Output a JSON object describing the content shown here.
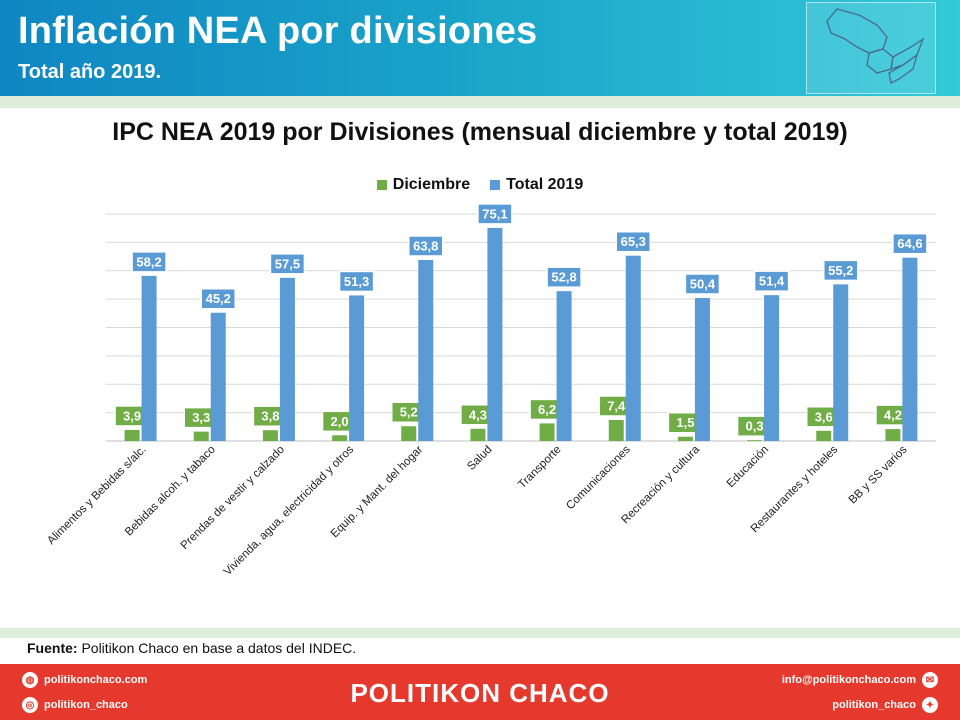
{
  "header": {
    "title": "Inflación NEA por divisiones",
    "subtitle": "Total año 2019."
  },
  "chart_data": {
    "type": "bar",
    "title": "IPC NEA 2019 por Divisiones (mensual diciembre y total 2019)",
    "categories": [
      "Alimentos y Bebidas s/alc.",
      "Bebidas alcoh. y tabaco",
      "Prendas de vestir y calzado",
      "Vivienda, agua, electricidad y otros",
      "Equip. y Mant. del hogar",
      "Salud",
      "Transporte",
      "Comunicaciones",
      "Recreación y cultura",
      "Educación",
      "Restaurantes y hoteles",
      "BB y SS varios"
    ],
    "series": [
      {
        "name": "Diciembre",
        "color": "#70ad47",
        "values": [
          3.9,
          3.3,
          3.8,
          2.0,
          5.2,
          4.3,
          6.2,
          7.4,
          1.5,
          0.3,
          3.6,
          4.2
        ],
        "labels": [
          "3,9",
          "3,3",
          "3,8",
          "2,0",
          "5,2",
          "4,3",
          "6,2",
          "7,4",
          "1,5",
          "0,3",
          "3,6",
          "4,2"
        ]
      },
      {
        "name": "Total 2019",
        "color": "#5b9bd5",
        "values": [
          58.2,
          45.2,
          57.5,
          51.3,
          63.8,
          75.1,
          52.8,
          65.3,
          50.4,
          51.4,
          55.2,
          64.6
        ],
        "labels": [
          "58,2",
          "45,2",
          "57,5",
          "51,3",
          "63,8",
          "75,1",
          "52,8",
          "65,3",
          "50,4",
          "51,4",
          "55,2",
          "64,6"
        ]
      }
    ],
    "ylim": [
      0,
      80
    ],
    "grid": true,
    "legend": "top-center"
  },
  "source": {
    "label": "Fuente:",
    "text": " Politikon Chaco en base a datos del INDEC."
  },
  "footer": {
    "brand": "POLITIKON CHACO",
    "web": "politikonchaco.com",
    "instagram": "politikon_chaco",
    "email": "info@politikonchaco.com",
    "twitter": "politikon_chaco"
  }
}
